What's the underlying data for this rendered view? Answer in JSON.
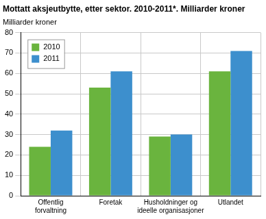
{
  "chart_data": {
    "type": "bar",
    "title": "Mottatt aksjeutbytte, etter sektor. 2010-2011*. Milliarder kroner",
    "y_label": "Milliarder kroner",
    "categories": [
      [
        "Offentlig",
        "forvaltning"
      ],
      "Foretak",
      [
        "Husholdninger og",
        "ideelle organisasjoner"
      ],
      "Utlandet"
    ],
    "series": [
      {
        "name": "2010",
        "color": "#6ab43e",
        "values": [
          24,
          53,
          29,
          61
        ]
      },
      {
        "name": "2011",
        "color": "#3d8fcd",
        "values": [
          32,
          61,
          30,
          71
        ]
      }
    ],
    "ylim": [
      0,
      80
    ],
    "yticks": [
      0,
      10,
      20,
      30,
      40,
      50,
      60,
      70,
      80
    ],
    "grid": true,
    "legend": "top-left"
  }
}
